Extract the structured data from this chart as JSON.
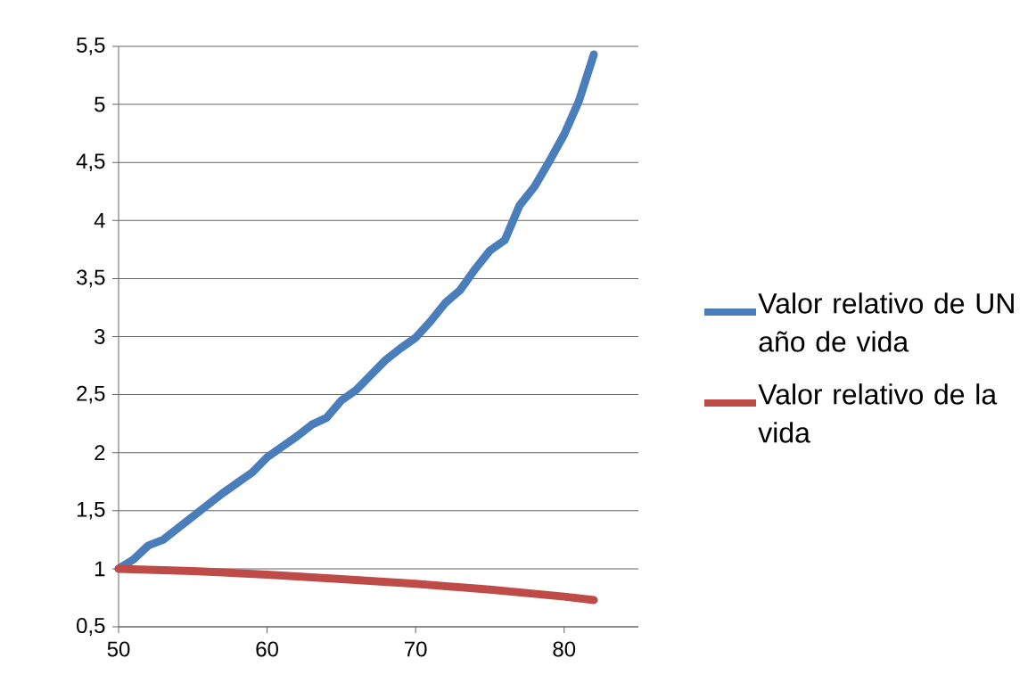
{
  "chart_data": {
    "type": "line",
    "xlim": [
      50,
      85
    ],
    "xticks": [
      50,
      60,
      70,
      80
    ],
    "ylim": [
      0.5,
      5.5
    ],
    "yticks": [
      {
        "value": 0.5,
        "label": "0,5"
      },
      1,
      {
        "value": 1.5,
        "label": "1,5"
      },
      2,
      {
        "value": 2.5,
        "label": "2,5"
      },
      3,
      {
        "value": 3.5,
        "label": "3,5"
      },
      4,
      {
        "value": 4.5,
        "label": "4,5"
      },
      5,
      {
        "value": 5.5,
        "label": "5,5"
      }
    ],
    "grid": "y",
    "legend": "right",
    "marker": "none",
    "line_style": "solid",
    "series": [
      {
        "name": "Valor relativo de UN año de vida",
        "color": "#4a7ebb",
        "x": [
          50,
          51,
          52,
          53,
          54,
          55,
          56,
          57,
          58,
          59,
          60,
          61,
          62,
          63,
          64,
          65,
          66,
          67,
          68,
          69,
          70,
          71,
          72,
          73,
          74,
          75,
          76,
          77,
          78,
          79,
          80,
          81,
          82
        ],
        "values": [
          1.0,
          1.08,
          1.2,
          1.25,
          1.35,
          1.45,
          1.55,
          1.65,
          1.74,
          1.83,
          1.96,
          2.05,
          2.14,
          2.24,
          2.3,
          2.45,
          2.54,
          2.67,
          2.8,
          2.9,
          2.99,
          3.13,
          3.29,
          3.4,
          3.58,
          3.74,
          3.83,
          4.13,
          4.29,
          4.51,
          4.74,
          5.03,
          5.43
        ]
      },
      {
        "name": "Valor relativo de la vida",
        "color": "#be4b48",
        "x": [
          50,
          55,
          60,
          65,
          70,
          75,
          80,
          82
        ],
        "values": [
          1.0,
          0.98,
          0.95,
          0.91,
          0.87,
          0.82,
          0.76,
          0.73
        ]
      }
    ]
  }
}
